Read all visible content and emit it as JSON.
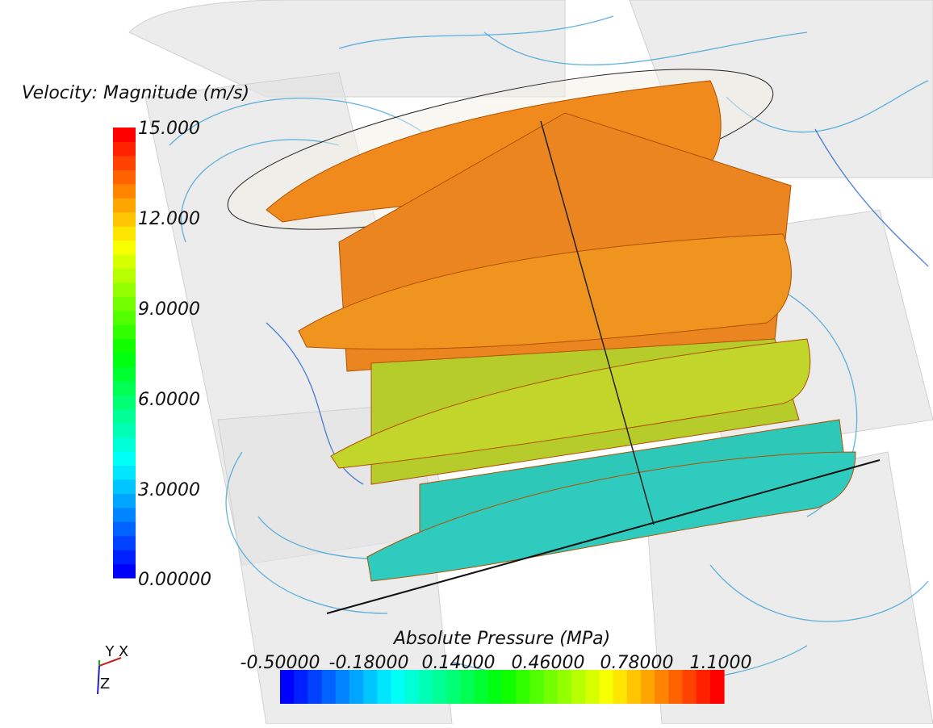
{
  "velocity_legend": {
    "title": "Velocity: Magnitude (m/s)",
    "ticks": [
      "15.000",
      "12.000",
      "9.0000",
      "6.0000",
      "3.0000",
      "0.00000"
    ]
  },
  "pressure_legend": {
    "title": "Absolute Pressure (MPa)",
    "ticks": [
      "-0.50000",
      "-0.18000",
      "0.14000",
      "0.46000",
      "0.78000",
      "1.1000"
    ]
  },
  "axes_triad": {
    "labels": [
      "Y",
      "X",
      "Z"
    ]
  }
}
